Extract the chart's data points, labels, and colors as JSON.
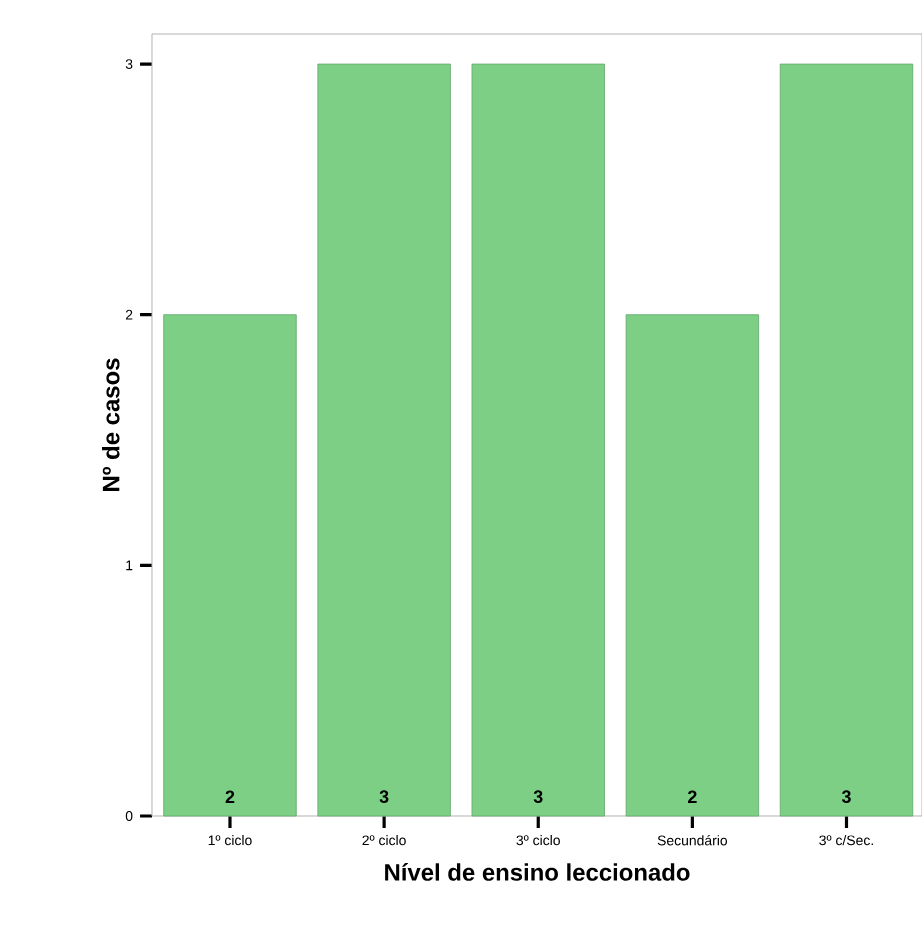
{
  "chart_data": {
    "type": "bar",
    "xlabel": "Nível de ensino leccionado",
    "ylabel": "Nº de casos",
    "categories": [
      "1º ciclo",
      "2º ciclo",
      "3º ciclo",
      "Secundário",
      "3º c/Sec."
    ],
    "values": [
      2,
      3,
      3,
      2,
      3
    ],
    "color": "#7ccf84",
    "ylim": [
      0,
      3.12
    ],
    "yticks": [
      0,
      1,
      2,
      3
    ],
    "data_labels": true
  }
}
